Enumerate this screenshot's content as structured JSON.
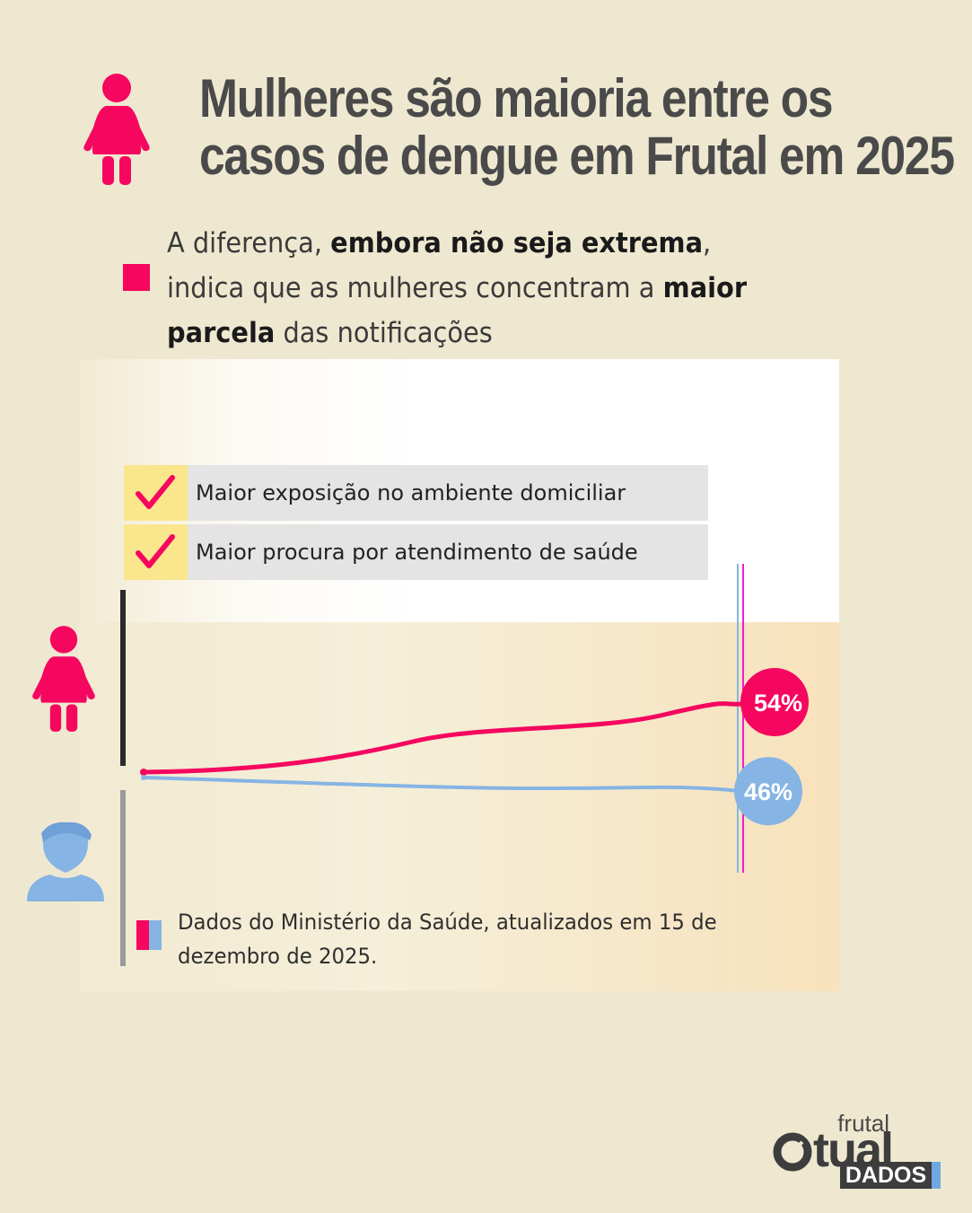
{
  "title": {
    "line1": "Mulheres são maioria entre os",
    "line2": "casos de dengue em Frutal em 2025"
  },
  "subtitle": {
    "part1": "A diferença, ",
    "bold1": "embora não seja extrema",
    "part2": ", indica que as mulheres concentram a ",
    "bold2": "maior parcela",
    "part3": " das notificações"
  },
  "reasons": [
    {
      "label": "Maior exposição no ambiente domiciliar"
    },
    {
      "label": "Maior procura por atendimento de saúde"
    }
  ],
  "chart_data": {
    "type": "line",
    "series": [
      {
        "value": 54,
        "label": "54%",
        "color": "#f5075f",
        "icon": "female-icon"
      },
      {
        "value": 46,
        "label": "46%",
        "color": "#86b4e4",
        "icon": "male-icon"
      }
    ],
    "grid": false
  },
  "footnote": "Dados do Ministério da Saúde, atualizados em 15 de dezembro de 2025.",
  "logo": {
    "frutal": "frutal",
    "tual": "tual",
    "dados": "DADOS"
  },
  "colors": {
    "pink": "#f5075f",
    "blue": "#86b4e4",
    "background": "#efe8d1",
    "check_cell": "#fae68d"
  }
}
